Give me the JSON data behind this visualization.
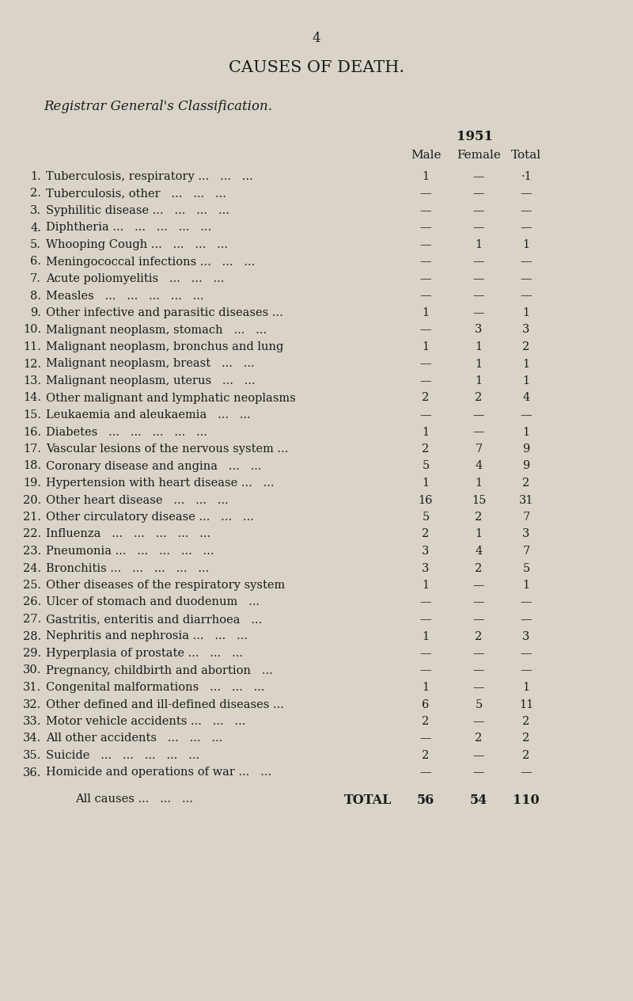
{
  "page_number": "4",
  "main_title": "CAUSES OF DEATH.",
  "subtitle": "Registrar General's Classification.",
  "year": "1951",
  "col_headers": [
    "Male",
    "Female",
    "Total"
  ],
  "rows": [
    {
      "num": "1.",
      "label": "Tuberculosis, respiratory ...   ...   ...",
      "male": "1",
      "female": "—",
      "total": "·1"
    },
    {
      "num": "2.",
      "label": "Tuberculosis, other   ...   ...   ...",
      "male": "—",
      "female": "—",
      "total": "—"
    },
    {
      "num": "3.",
      "label": "Syphilitic disease ...   ...   ...   ...",
      "male": "—",
      "female": "—",
      "total": "—"
    },
    {
      "num": "4.",
      "label": "Diphtheria ...   ...   ...   ...   ...",
      "male": "—",
      "female": "—",
      "total": "—"
    },
    {
      "num": "5.",
      "label": "Whooping Cough ...   ...   ...   ...",
      "male": "—",
      "female": "1",
      "total": "1"
    },
    {
      "num": "6.",
      "label": "Meningococcal infections ...   ...   ...",
      "male": "—",
      "female": "—",
      "total": "—"
    },
    {
      "num": "7.",
      "label": "Acute poliomyelitis   ...   ...   ...",
      "male": "—",
      "female": "—",
      "total": "—"
    },
    {
      "num": "8.",
      "label": "Measles   ...   ...   ...   ...   ...",
      "male": "—",
      "female": "—",
      "total": "—"
    },
    {
      "num": "9.",
      "label": "Other infective and parasitic diseases ...",
      "male": "1",
      "female": "—",
      "total": "1"
    },
    {
      "num": "10.",
      "label": "Malignant neoplasm, stomach   ...   ...",
      "male": "—",
      "female": "3",
      "total": "3"
    },
    {
      "num": "11.",
      "label": "Malignant neoplasm, bronchus and lung",
      "male": "1",
      "female": "1",
      "total": "2"
    },
    {
      "num": "12.",
      "label": "Malignant neoplasm, breast   ...   ...",
      "male": "—",
      "female": "1",
      "total": "1"
    },
    {
      "num": "13.",
      "label": "Malignant neoplasm, uterus   ...   ...",
      "male": "—",
      "female": "1",
      "total": "1"
    },
    {
      "num": "14.",
      "label": "Other malignant and lymphatic neoplasms",
      "male": "2",
      "female": "2",
      "total": "4"
    },
    {
      "num": "15.",
      "label": "Leukaemia and aleukaemia   ...   ...",
      "male": "—",
      "female": "—",
      "total": "—"
    },
    {
      "num": "16.",
      "label": "Diabetes   ...   ...   ...   ...   ...",
      "male": "1",
      "female": "—",
      "total": "1"
    },
    {
      "num": "17.",
      "label": "Vascular lesions of the nervous system ...",
      "male": "2",
      "female": "7",
      "total": "9"
    },
    {
      "num": "18.",
      "label": "Coronary disease and angina   ...   ...",
      "male": "5",
      "female": "4",
      "total": "9"
    },
    {
      "num": "19.",
      "label": "Hypertension with heart disease ...   ...",
      "male": "1",
      "female": "1",
      "total": "2"
    },
    {
      "num": "20.",
      "label": "Other heart disease   ...   ...   ...",
      "male": "16",
      "female": "15",
      "total": "31"
    },
    {
      "num": "21.",
      "label": "Other circulatory disease ...   ...   ...",
      "male": "5",
      "female": "2",
      "total": "7"
    },
    {
      "num": "22.",
      "label": "Influenza   ...   ...   ...   ...   ...",
      "male": "2",
      "female": "1",
      "total": "3"
    },
    {
      "num": "23.",
      "label": "Pneumonia ...   ...   ...   ...   ...",
      "male": "3",
      "female": "4",
      "total": "7"
    },
    {
      "num": "24.",
      "label": "Bronchitis ...   ...   ...   ...   ...",
      "male": "3",
      "female": "2",
      "total": "5"
    },
    {
      "num": "25.",
      "label": "Other diseases of the respiratory system",
      "male": "1",
      "female": "—",
      "total": "1"
    },
    {
      "num": "26.",
      "label": "Ulcer of stomach and duodenum   ...",
      "male": "—",
      "female": "—",
      "total": "—"
    },
    {
      "num": "27.",
      "label": "Gastritis, enteritis and diarrhoea   ...",
      "male": "—",
      "female": "—",
      "total": "—"
    },
    {
      "num": "28.",
      "label": "Nephritis and nephrosia ...   ...   ...",
      "male": "1",
      "female": "2",
      "total": "3"
    },
    {
      "num": "29.",
      "label": "Hyperplasia of prostate ...   ...   ...",
      "male": "—",
      "female": "—",
      "total": "—"
    },
    {
      "num": "30.",
      "label": "Pregnancy, childbirth and abortion   ...",
      "male": "—",
      "female": "—",
      "total": "—"
    },
    {
      "num": "31.",
      "label": "Congenital malformations   ...   ...   ...",
      "male": "1",
      "female": "—",
      "total": "1"
    },
    {
      "num": "32.",
      "label": "Other defined and ill-defined diseases ...",
      "male": "6",
      "female": "5",
      "total": "11"
    },
    {
      "num": "33.",
      "label": "Motor vehicle accidents ...   ...   ...",
      "male": "2",
      "female": "—",
      "total": "2"
    },
    {
      "num": "34.",
      "label": "All other accidents   ...   ...   ...",
      "male": "—",
      "female": "2",
      "total": "2"
    },
    {
      "num": "35.",
      "label": "Suicide   ...   ...   ...   ...   ...",
      "male": "2",
      "female": "—",
      "total": "2"
    },
    {
      "num": "36.",
      "label": "Homicide and operations of war ...   ...",
      "male": "—",
      "female": "—",
      "total": "—"
    }
  ],
  "total_row": {
    "label_left": "All causes ...   ...   ...",
    "label_mid": "TOTAL",
    "male": "56",
    "female": "54",
    "total": "110"
  },
  "bg_color": "#d9d4c7",
  "text_color": "#1a1a1a",
  "font_size_title": 15,
  "font_size_subtitle": 12,
  "font_size_body": 10.5,
  "font_size_header": 11
}
